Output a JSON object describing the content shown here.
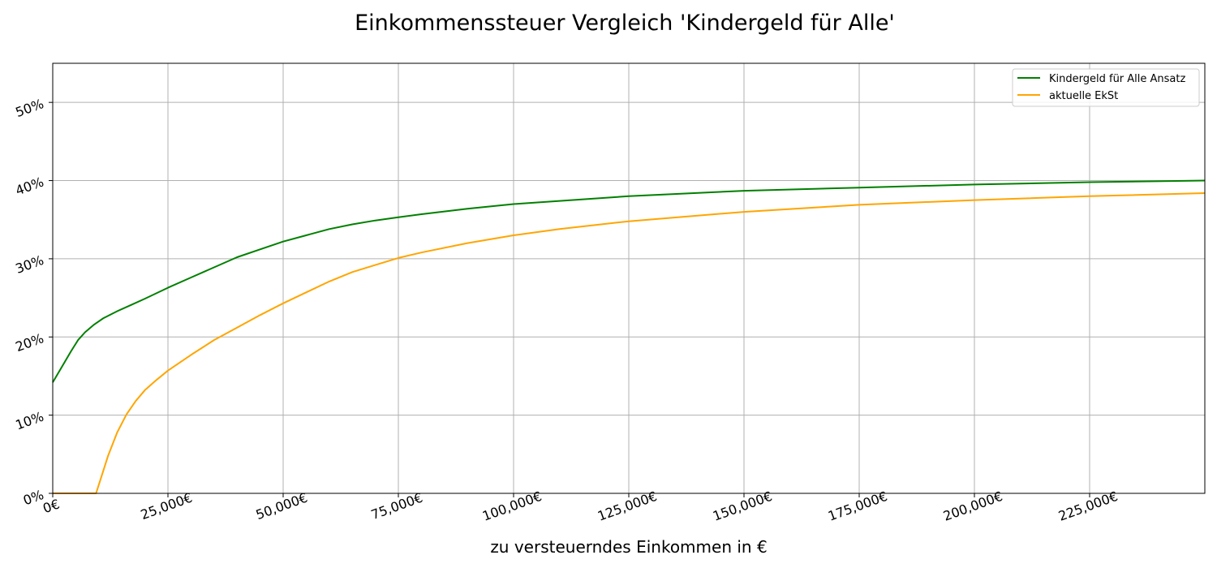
{
  "chart_data": {
    "type": "line",
    "title": "Einkommenssteuer Vergleich 'Kindergeld für Alle'",
    "xlabel": "zu versteuerndes Einkommen in €",
    "ylabel": "",
    "xlim": [
      0,
      250000
    ],
    "ylim": [
      0,
      55
    ],
    "grid": true,
    "legend_position": "top-right",
    "x_ticks": [
      0,
      25000,
      50000,
      75000,
      100000,
      125000,
      150000,
      175000,
      200000,
      225000
    ],
    "x_tick_labels": [
      "0€",
      "25,000€",
      "50,000€",
      "75,000€",
      "100,000€",
      "125,000€",
      "150,000€",
      "175,000€",
      "200,000€",
      "225,000€"
    ],
    "y_ticks": [
      0,
      10,
      20,
      30,
      40,
      50
    ],
    "y_tick_labels": [
      "0%",
      "10%",
      "20%",
      "30%",
      "40%",
      "50%"
    ],
    "series": [
      {
        "name": "Kindergeld für Alle Ansatz",
        "color": "#008000",
        "x": [
          0,
          2000,
          4000,
          5500,
          7000,
          9000,
          11000,
          14000,
          17000,
          20000,
          25000,
          30000,
          35000,
          40000,
          45000,
          50000,
          55000,
          60000,
          65000,
          70000,
          75000,
          80000,
          90000,
          100000,
          110000,
          125000,
          150000,
          175000,
          200000,
          225000,
          250000
        ],
        "y": [
          14.2,
          16.2,
          18.2,
          19.6,
          20.6,
          21.6,
          22.4,
          23.3,
          24.1,
          24.9,
          26.3,
          27.6,
          28.9,
          30.2,
          31.2,
          32.2,
          33.0,
          33.8,
          34.4,
          34.9,
          35.3,
          35.7,
          36.4,
          37.0,
          37.4,
          38.0,
          38.7,
          39.1,
          39.5,
          39.8,
          40.0
        ]
      },
      {
        "name": "aktuelle EkSt",
        "color": "#FFA500",
        "x": [
          0,
          9400,
          10500,
          12000,
          14000,
          16000,
          18000,
          20000,
          22500,
          25000,
          30000,
          35000,
          40000,
          45000,
          50000,
          55000,
          60000,
          65000,
          70000,
          75000,
          80000,
          90000,
          100000,
          110000,
          125000,
          150000,
          175000,
          200000,
          225000,
          250000
        ],
        "y": [
          0,
          0,
          2.0,
          4.8,
          7.8,
          10.1,
          11.8,
          13.2,
          14.5,
          15.7,
          17.7,
          19.6,
          21.2,
          22.8,
          24.3,
          25.7,
          27.1,
          28.3,
          29.2,
          30.1,
          30.8,
          32.0,
          33.0,
          33.8,
          34.8,
          36.0,
          36.9,
          37.5,
          38.0,
          38.4
        ]
      }
    ]
  }
}
